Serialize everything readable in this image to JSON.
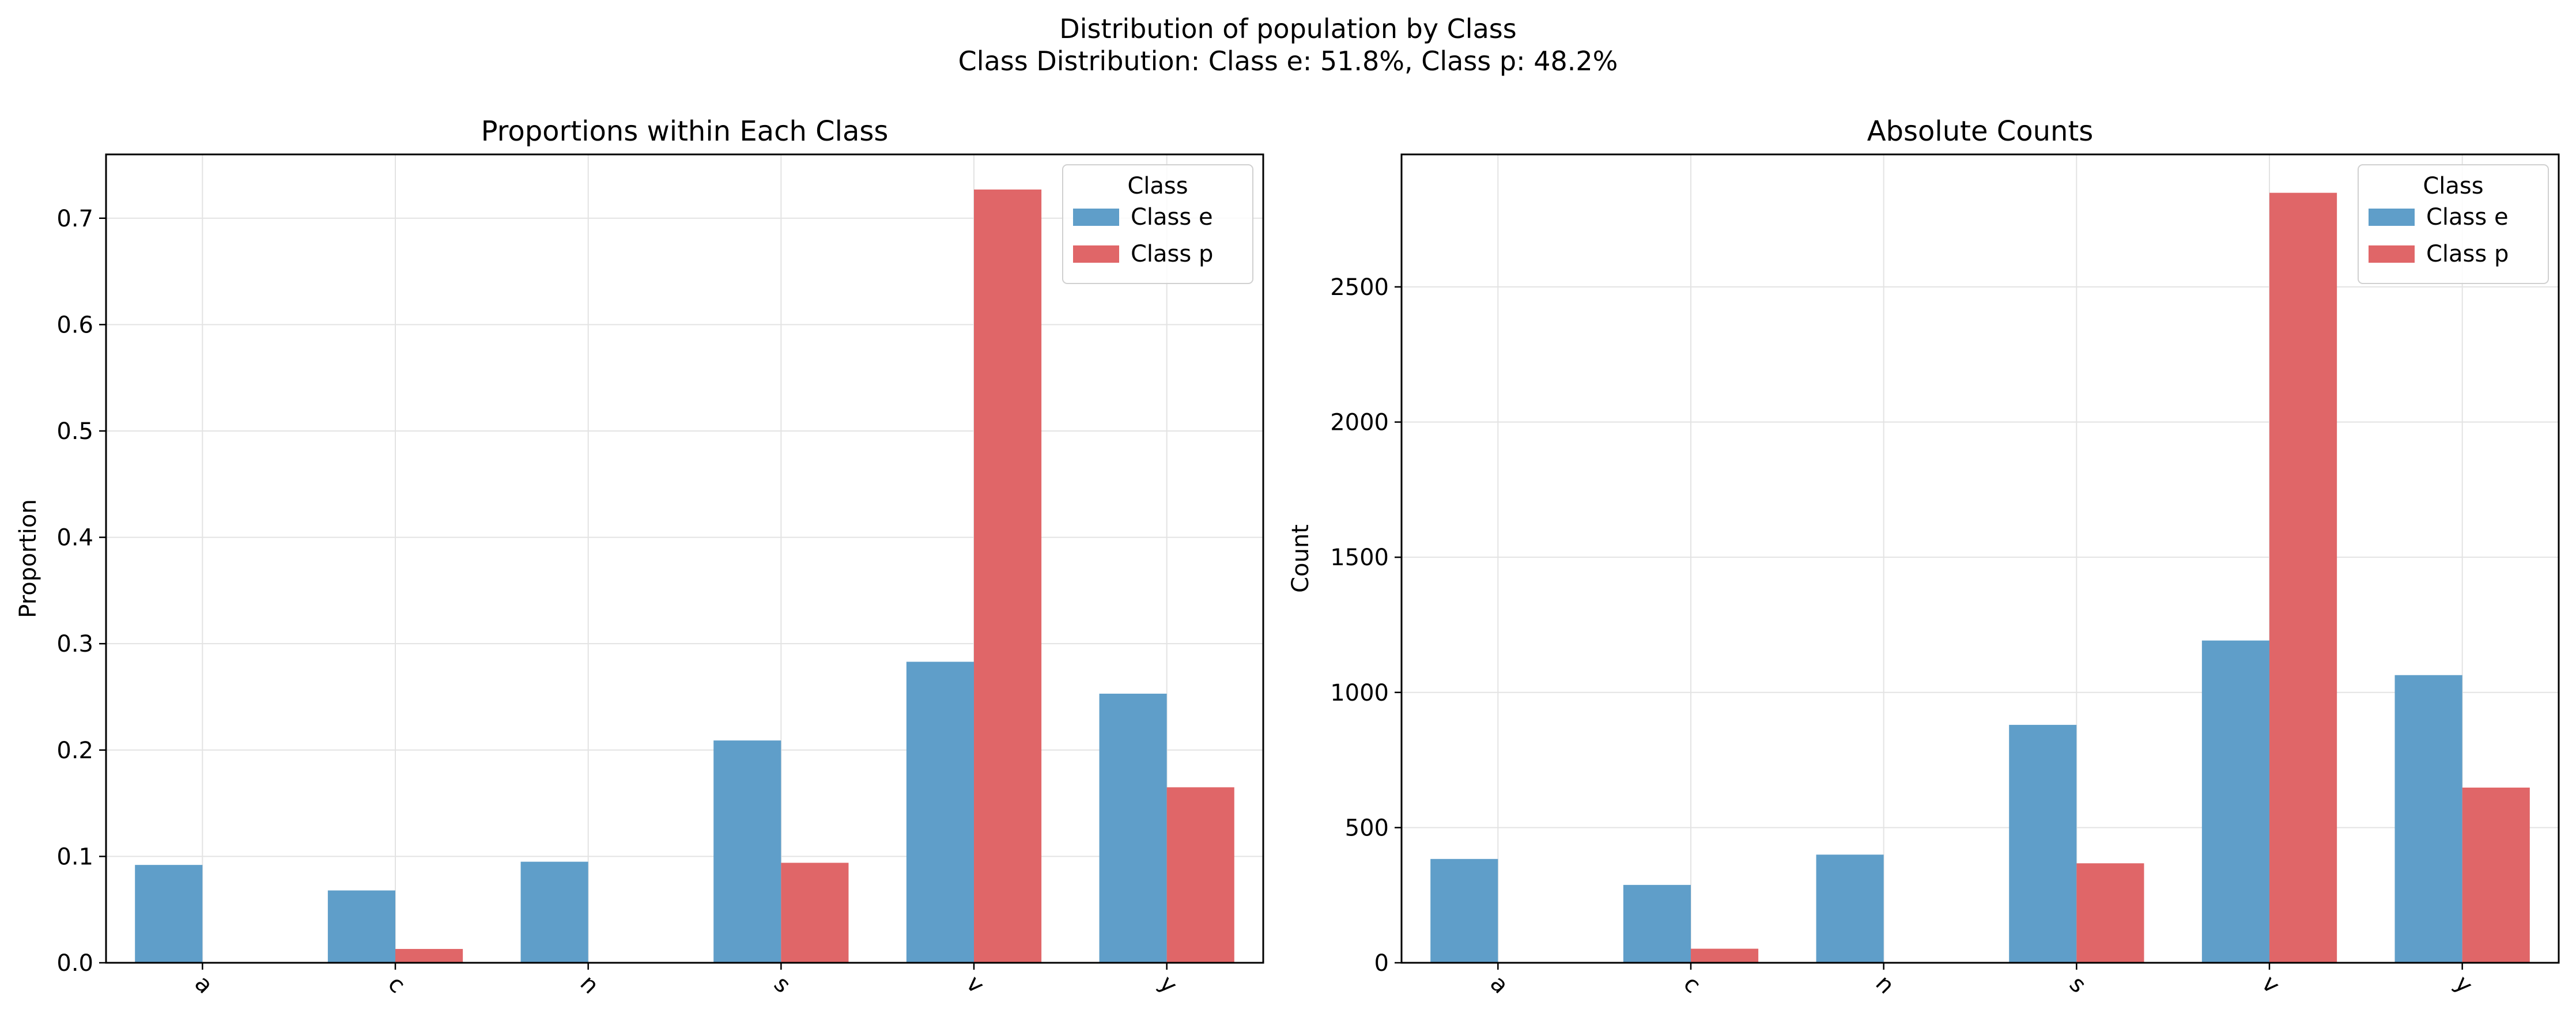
{
  "figure": {
    "title": "Distribution of population by Class",
    "subtitle": "Class Distribution: Class e: 51.8%, Class p: 48.2%"
  },
  "colors": {
    "class_e": "#5f9ec9",
    "class_p": "#e06668",
    "grid": "#e3e3e3"
  },
  "chart_data": [
    {
      "type": "bar",
      "title": "Proportions within Each Class",
      "xlabel": "",
      "ylabel": "Proportion",
      "categories": [
        "a",
        "c",
        "n",
        "s",
        "v",
        "y"
      ],
      "ylim": [
        0,
        0.76
      ],
      "yticks": [
        "0.0",
        "0.1",
        "0.2",
        "0.3",
        "0.4",
        "0.5",
        "0.6",
        "0.7"
      ],
      "grid": true,
      "legend": {
        "title": "Class",
        "position": "top-right"
      },
      "series": [
        {
          "name": "Class e",
          "values": [
            0.092,
            0.068,
            0.095,
            0.209,
            0.283,
            0.253
          ]
        },
        {
          "name": "Class p",
          "values": [
            0.0,
            0.013,
            0.0,
            0.094,
            0.727,
            0.165
          ]
        }
      ]
    },
    {
      "type": "bar",
      "title": "Absolute Counts",
      "xlabel": "",
      "ylabel": "Count",
      "categories": [
        "a",
        "c",
        "n",
        "s",
        "v",
        "y"
      ],
      "ylim": [
        0,
        2990
      ],
      "yticks": [
        "0",
        "500",
        "1000",
        "1500",
        "2000",
        "2500"
      ],
      "grid": true,
      "legend": {
        "title": "Class",
        "position": "top-right"
      },
      "series": [
        {
          "name": "Class e",
          "values": [
            384,
            288,
            400,
            880,
            1192,
            1064
          ]
        },
        {
          "name": "Class p",
          "values": [
            0,
            52,
            0,
            368,
            2848,
            648
          ]
        }
      ]
    }
  ]
}
